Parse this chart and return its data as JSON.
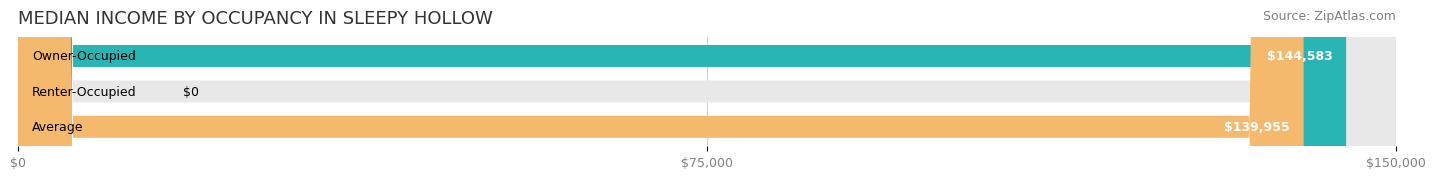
{
  "title": "MEDIAN INCOME BY OCCUPANCY IN SLEEPY HOLLOW",
  "source": "Source: ZipAtlas.com",
  "categories": [
    "Owner-Occupied",
    "Renter-Occupied",
    "Average"
  ],
  "values": [
    144583,
    0,
    139955
  ],
  "bar_colors": [
    "#2ab5b5",
    "#c8a8d8",
    "#f5b96e"
  ],
  "bar_bg_color": "#f0f0f0",
  "value_labels": [
    "$144,583",
    "$0",
    "$139,955"
  ],
  "xlim": [
    0,
    150000
  ],
  "xticks": [
    0,
    75000,
    150000
  ],
  "xtick_labels": [
    "$0",
    "$75,000",
    "$150,000"
  ],
  "title_fontsize": 13,
  "source_fontsize": 9,
  "label_fontsize": 9,
  "value_fontsize": 9,
  "background_color": "#ffffff",
  "bar_background": "#e8e8e8"
}
